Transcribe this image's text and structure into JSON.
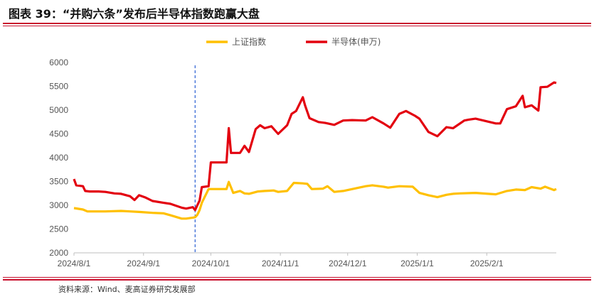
{
  "header": {
    "title": "图表 39：“并购六条”发布后半导体指数跑赢大盘"
  },
  "footer": {
    "source": "资料来源：Wind、麦高证券研究发展部"
  },
  "colors": {
    "accent_red": "#e3000f",
    "accent_yellow": "#ffc000",
    "rule": "#c8102e",
    "marker": "#3b6bd6"
  },
  "chart_data": {
    "type": "line",
    "title": "",
    "xlabel": "",
    "ylabel": "",
    "ylim": [
      2000,
      6000
    ],
    "yticks": [
      2000,
      2500,
      3000,
      3500,
      4000,
      4500,
      5000,
      5500,
      6000
    ],
    "xrange": [
      "2024-08-01",
      "2025-03-04"
    ],
    "xticks": [
      {
        "label": "2024/8/1",
        "date": "2024-08-01"
      },
      {
        "label": "2024/9/1",
        "date": "2024-09-01"
      },
      {
        "label": "2024/10/1",
        "date": "2024-10-01"
      },
      {
        "label": "2024/11/1",
        "date": "2024-11-01"
      },
      {
        "label": "2024/12/1",
        "date": "2024-12-01"
      },
      {
        "label": "2025/1/1",
        "date": "2025-01-01"
      },
      {
        "label": "2025/2/1",
        "date": "2025-02-01"
      }
    ],
    "grid": false,
    "legend_position": "top-center",
    "event_marker": {
      "date": "2024-09-24",
      "style": "dashed"
    },
    "series": [
      {
        "name": "上证指数",
        "color": "#ffc000",
        "points": [
          [
            "2024-08-01",
            2940
          ],
          [
            "2024-08-05",
            2910
          ],
          [
            "2024-08-07",
            2870
          ],
          [
            "2024-08-15",
            2870
          ],
          [
            "2024-08-22",
            2880
          ],
          [
            "2024-08-26",
            2870
          ],
          [
            "2024-08-30",
            2860
          ],
          [
            "2024-09-05",
            2840
          ],
          [
            "2024-09-10",
            2830
          ],
          [
            "2024-09-13",
            2790
          ],
          [
            "2024-09-18",
            2720
          ],
          [
            "2024-09-20",
            2720
          ],
          [
            "2024-09-23",
            2740
          ],
          [
            "2024-09-24",
            2750
          ],
          [
            "2024-09-25",
            2800
          ],
          [
            "2024-09-26",
            2900
          ],
          [
            "2024-09-27",
            3050
          ],
          [
            "2024-09-30",
            3340
          ],
          [
            "2024-10-08",
            3340
          ],
          [
            "2024-10-09",
            3490
          ],
          [
            "2024-10-11",
            3260
          ],
          [
            "2024-10-14",
            3300
          ],
          [
            "2024-10-16",
            3250
          ],
          [
            "2024-10-18",
            3240
          ],
          [
            "2024-10-22",
            3290
          ],
          [
            "2024-10-25",
            3300
          ],
          [
            "2024-10-29",
            3310
          ],
          [
            "2024-10-31",
            3280
          ],
          [
            "2024-11-04",
            3300
          ],
          [
            "2024-11-07",
            3470
          ],
          [
            "2024-11-11",
            3460
          ],
          [
            "2024-11-13",
            3450
          ],
          [
            "2024-11-15",
            3340
          ],
          [
            "2024-11-20",
            3350
          ],
          [
            "2024-11-22",
            3400
          ],
          [
            "2024-11-25",
            3280
          ],
          [
            "2024-11-29",
            3300
          ],
          [
            "2024-12-04",
            3350
          ],
          [
            "2024-12-09",
            3400
          ],
          [
            "2024-12-12",
            3420
          ],
          [
            "2024-12-17",
            3390
          ],
          [
            "2024-12-19",
            3370
          ],
          [
            "2024-12-24",
            3400
          ],
          [
            "2024-12-30",
            3390
          ],
          [
            "2025-01-02",
            3260
          ],
          [
            "2025-01-06",
            3210
          ],
          [
            "2025-01-10",
            3170
          ],
          [
            "2025-01-14",
            3220
          ],
          [
            "2025-01-17",
            3240
          ],
          [
            "2025-01-20",
            3250
          ],
          [
            "2025-01-27",
            3260
          ],
          [
            "2025-02-05",
            3230
          ],
          [
            "2025-02-10",
            3300
          ],
          [
            "2025-02-14",
            3330
          ],
          [
            "2025-02-18",
            3320
          ],
          [
            "2025-02-21",
            3380
          ],
          [
            "2025-02-25",
            3350
          ],
          [
            "2025-02-27",
            3390
          ],
          [
            "2025-03-03",
            3320
          ],
          [
            "2025-03-04",
            3340
          ]
        ]
      },
      {
        "name": "半导体(申万)",
        "color": "#e3000f",
        "points": [
          [
            "2024-08-01",
            3550
          ],
          [
            "2024-08-02",
            3420
          ],
          [
            "2024-08-05",
            3400
          ],
          [
            "2024-08-06",
            3300
          ],
          [
            "2024-08-08",
            3290
          ],
          [
            "2024-08-12",
            3290
          ],
          [
            "2024-08-15",
            3280
          ],
          [
            "2024-08-19",
            3250
          ],
          [
            "2024-08-22",
            3240
          ],
          [
            "2024-08-26",
            3190
          ],
          [
            "2024-08-28",
            3110
          ],
          [
            "2024-08-30",
            3210
          ],
          [
            "2024-09-02",
            3160
          ],
          [
            "2024-09-05",
            3090
          ],
          [
            "2024-09-10",
            3050
          ],
          [
            "2024-09-13",
            3030
          ],
          [
            "2024-09-18",
            2950
          ],
          [
            "2024-09-20",
            2930
          ],
          [
            "2024-09-23",
            2960
          ],
          [
            "2024-09-24",
            2900
          ],
          [
            "2024-09-25",
            3000
          ],
          [
            "2024-09-26",
            3100
          ],
          [
            "2024-09-27",
            3380
          ],
          [
            "2024-09-30",
            3400
          ],
          [
            "2024-10-01",
            3900
          ],
          [
            "2024-10-08",
            3900
          ],
          [
            "2024-10-09",
            4620
          ],
          [
            "2024-10-10",
            4100
          ],
          [
            "2024-10-14",
            4100
          ],
          [
            "2024-10-16",
            4250
          ],
          [
            "2024-10-18",
            4120
          ],
          [
            "2024-10-21",
            4600
          ],
          [
            "2024-10-23",
            4680
          ],
          [
            "2024-10-25",
            4620
          ],
          [
            "2024-10-28",
            4660
          ],
          [
            "2024-10-31",
            4500
          ],
          [
            "2024-11-04",
            4680
          ],
          [
            "2024-11-06",
            4920
          ],
          [
            "2024-11-08",
            4980
          ],
          [
            "2024-11-11",
            5270
          ],
          [
            "2024-11-12",
            5100
          ],
          [
            "2024-11-14",
            4830
          ],
          [
            "2024-11-18",
            4750
          ],
          [
            "2024-11-21",
            4730
          ],
          [
            "2024-11-25",
            4690
          ],
          [
            "2024-11-29",
            4780
          ],
          [
            "2024-12-03",
            4790
          ],
          [
            "2024-12-09",
            4780
          ],
          [
            "2024-12-12",
            4850
          ],
          [
            "2024-12-17",
            4720
          ],
          [
            "2024-12-20",
            4630
          ],
          [
            "2024-12-24",
            4920
          ],
          [
            "2024-12-27",
            4980
          ],
          [
            "2024-12-31",
            4880
          ],
          [
            "2025-01-02",
            4820
          ],
          [
            "2025-01-06",
            4540
          ],
          [
            "2025-01-10",
            4450
          ],
          [
            "2025-01-14",
            4640
          ],
          [
            "2025-01-17",
            4620
          ],
          [
            "2025-01-22",
            4780
          ],
          [
            "2025-01-24",
            4800
          ],
          [
            "2025-01-27",
            4820
          ],
          [
            "2025-02-05",
            4720
          ],
          [
            "2025-02-07",
            4720
          ],
          [
            "2025-02-10",
            5020
          ],
          [
            "2025-02-14",
            5080
          ],
          [
            "2025-02-17",
            5300
          ],
          [
            "2025-02-18",
            5060
          ],
          [
            "2025-02-21",
            5100
          ],
          [
            "2025-02-24",
            4990
          ],
          [
            "2025-02-25",
            5480
          ],
          [
            "2025-02-28",
            5490
          ],
          [
            "2025-03-03",
            5580
          ],
          [
            "2025-03-04",
            5570
          ]
        ]
      }
    ]
  }
}
